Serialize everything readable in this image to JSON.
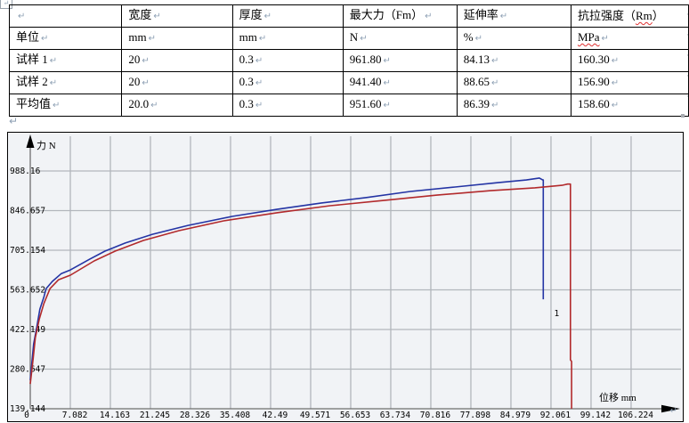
{
  "document": {
    "paragraph_mark": "↵",
    "row_end_mark": "·"
  },
  "table": {
    "header": {
      "c0": "",
      "c1": "宽度",
      "c2": "厚度",
      "c3": "最大力（Fm）",
      "c4": "延伸率",
      "c5_prefix": "抗拉强度（",
      "c5_rm": "Rm",
      "c5_suffix": "）"
    },
    "rows": [
      {
        "cells": [
          "单位",
          "mm",
          "mm",
          "N",
          "%",
          "MPa"
        ]
      },
      {
        "cells": [
          "试样 1",
          "20",
          "0.3",
          "961.80",
          "84.13",
          "160.30"
        ]
      },
      {
        "cells": [
          "试样 2",
          "20",
          "0.3",
          "941.40",
          "88.65",
          "156.90"
        ]
      },
      {
        "cells": [
          "平均值",
          "20.0",
          "0.3",
          "951.60",
          "86.39",
          "158.60"
        ]
      }
    ]
  },
  "chart_data": {
    "type": "line",
    "title": "",
    "xlabel": "位移 mm",
    "ylabel": "力 N",
    "x_ticks": [
      "0",
      "7.082",
      "14.163",
      "21.245",
      "28.326",
      "35.408",
      "42.49",
      "49.571",
      "56.653",
      "63.734",
      "70.816",
      "77.898",
      "84.979",
      "92.061",
      "99.142",
      "106.224"
    ],
    "y_ticks": [
      "139.144",
      "280.647",
      "422.149",
      "563.652",
      "705.154",
      "846.657",
      "988.16"
    ],
    "xlim": [
      0,
      116
    ],
    "ylim": [
      139.144,
      1125
    ],
    "grid": true,
    "legend": "none",
    "colors": {
      "background": "#f1f3f6",
      "grid": "#b2b6bc",
      "axis": "#6e6e6e",
      "arrow": "#000000",
      "text": "#000000",
      "sample1": "#2434a4",
      "sample2": "#b22a2c"
    },
    "series": [
      {
        "name": "试样 1",
        "color_key": "sample1",
        "end_label": "1",
        "end_label_at": [
          92.3,
          470
        ],
        "points": [
          [
            0,
            241
          ],
          [
            0.3,
            307
          ],
          [
            0.6,
            371
          ],
          [
            1.1,
            425
          ],
          [
            1.7,
            495
          ],
          [
            2.4,
            537
          ],
          [
            2.8,
            568
          ],
          [
            3.9,
            594
          ],
          [
            5.5,
            622
          ],
          [
            7.1,
            635
          ],
          [
            10.5,
            673
          ],
          [
            13.2,
            702
          ],
          [
            16.8,
            731
          ],
          [
            21.6,
            762
          ],
          [
            27.9,
            794
          ],
          [
            35.7,
            826
          ],
          [
            43.6,
            851
          ],
          [
            51.5,
            874
          ],
          [
            59.3,
            893
          ],
          [
            67.2,
            915
          ],
          [
            75.1,
            931
          ],
          [
            82.9,
            947
          ],
          [
            87.7,
            956
          ],
          [
            90,
            963
          ],
          [
            90.6,
            956
          ],
          [
            90.7,
            956
          ],
          [
            90.7,
            530
          ]
        ]
      },
      {
        "name": "试样 2",
        "color_key": "sample2",
        "end_label": "",
        "end_label_at": null,
        "points": [
          [
            0,
            228
          ],
          [
            0.5,
            317
          ],
          [
            0.9,
            393
          ],
          [
            1.6,
            460
          ],
          [
            2.4,
            514
          ],
          [
            3.5,
            568
          ],
          [
            5,
            600
          ],
          [
            7.1,
            616
          ],
          [
            11.3,
            667
          ],
          [
            15,
            702
          ],
          [
            20,
            740
          ],
          [
            26.3,
            775
          ],
          [
            34.2,
            810
          ],
          [
            43.6,
            839
          ],
          [
            53,
            864
          ],
          [
            62.5,
            883
          ],
          [
            71.9,
            902
          ],
          [
            81.4,
            918
          ],
          [
            89.2,
            928
          ],
          [
            94,
            937
          ],
          [
            95,
            941.4
          ],
          [
            95.5,
            941.4
          ],
          [
            95.5,
            314
          ],
          [
            95.7,
            308
          ],
          [
            95.7,
            139.144
          ]
        ]
      }
    ]
  }
}
